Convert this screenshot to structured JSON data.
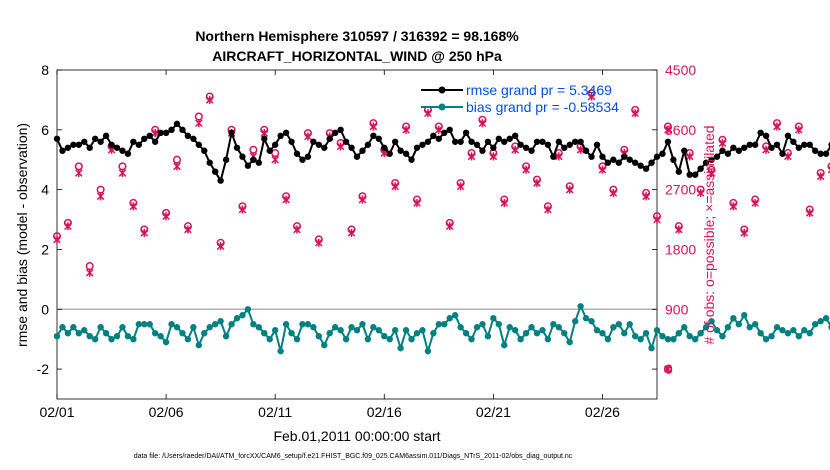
{
  "chart_data": {
    "type": "line",
    "title_line1": "Northern Hemisphere 310597 / 316392 = 98.168%",
    "title_line2": "AIRCRAFT_HORIZONTAL_WIND @ 250 hPa",
    "xlabel": "Feb.01,2011 00:00:00 start",
    "ylabel_left": "rmse and bias (model - observation)",
    "ylabel_right": "# of obs: o=possible; ×=assimilated",
    "left_ylim": [
      -3,
      8
    ],
    "right_ylim": [
      -450,
      4500
    ],
    "left_ticks": [
      "-2",
      "0",
      "2",
      "4",
      "6",
      "8"
    ],
    "left_tick_values": [
      -2,
      0,
      2,
      4,
      6,
      8
    ],
    "right_ticks": [
      "0",
      "900",
      "1800",
      "2700",
      "3600",
      "4500"
    ],
    "right_tick_values": [
      0,
      900,
      1800,
      2700,
      3600,
      4500
    ],
    "x_ticks": [
      "02/01",
      "02/06",
      "02/11",
      "02/16",
      "02/21",
      "02/26"
    ],
    "x_tick_days": [
      0,
      5,
      10,
      15,
      20,
      25
    ],
    "xlim_days": [
      0,
      27.5
    ],
    "zero_line": 0,
    "legend": [
      {
        "label": "rmse grand pr = 5.3469",
        "color": "#000000"
      },
      {
        "label": "bias grand pr = -0.58534",
        "color": "#008080"
      }
    ],
    "colors": {
      "rmse": "#000000",
      "bias": "#008080",
      "obs": "#d4145a",
      "legend_text": "#0050e0",
      "zero_line": "#b0b0b0"
    },
    "series": [
      {
        "name": "rmse",
        "axis": "left",
        "start_day": 0,
        "step_days": 0.25,
        "values": [
          5.7,
          5.3,
          5.4,
          5.5,
          5.5,
          5.6,
          5.4,
          5.7,
          5.6,
          5.8,
          5.5,
          5.4,
          5.3,
          5.2,
          5.6,
          5.5,
          5.7,
          5.8,
          5.6,
          5.9,
          5.9,
          6.0,
          6.2,
          6.0,
          5.8,
          5.7,
          5.5,
          5.3,
          4.9,
          4.6,
          4.3,
          5.0,
          5.9,
          5.4,
          5.1,
          4.8,
          5.0,
          4.9,
          5.7,
          5.3,
          5.5,
          5.8,
          5.9,
          5.6,
          5.2,
          5.0,
          5.1,
          5.6,
          5.5,
          5.4,
          5.7,
          5.9,
          6.0,
          5.6,
          5.4,
          5.1,
          5.3,
          5.5,
          5.8,
          5.7,
          5.4,
          5.2,
          5.6,
          5.3,
          5.2,
          5.0,
          5.4,
          5.5,
          5.6,
          5.8,
          5.7,
          5.9,
          6.0,
          5.6,
          5.6,
          5.9,
          5.6,
          5.5,
          5.3,
          5.6,
          5.4,
          5.7,
          5.6,
          5.7,
          5.8,
          5.5,
          5.4,
          5.3,
          5.6,
          5.6,
          5.5,
          5.1,
          5.6,
          5.4,
          5.5,
          5.6,
          5.6,
          5.3,
          5.1,
          5.5,
          5.1,
          4.9,
          5.0,
          4.9,
          5.1,
          5.0,
          4.9,
          4.8,
          4.7,
          4.9,
          5.1,
          5.2,
          5.6,
          5.0,
          4.6,
          5.3,
          4.5,
          4.5,
          4.7,
          4.9,
          5.0,
          5.1,
          5.3,
          5.2,
          5.4,
          5.3,
          5.4,
          5.5,
          5.5,
          5.9,
          5.8,
          5.4,
          5.5,
          5.2,
          5.8,
          5.6,
          5.4,
          5.5,
          5.5,
          5.3,
          5.2,
          5.2,
          5.5,
          5.3,
          5.4,
          5.5,
          5.2,
          5.0,
          5.1,
          5.0,
          5.0,
          4.8,
          4.6,
          4.6
        ]
      },
      {
        "name": "bias",
        "axis": "left",
        "start_day": 0,
        "step_days": 0.25,
        "values": [
          -0.9,
          -0.6,
          -0.8,
          -0.6,
          -0.8,
          -0.7,
          -0.9,
          -1.0,
          -0.6,
          -0.8,
          -1.0,
          -0.9,
          -0.6,
          -0.9,
          -1.0,
          -0.5,
          -0.5,
          -0.5,
          -0.8,
          -0.9,
          -1.1,
          -0.5,
          -0.6,
          -0.8,
          -1.0,
          -0.6,
          -1.2,
          -0.8,
          -0.6,
          -0.5,
          -0.4,
          -0.9,
          -0.5,
          -0.3,
          -0.2,
          0.0,
          -0.5,
          -0.6,
          -0.8,
          -1.0,
          -0.7,
          -1.4,
          -0.5,
          -0.8,
          -1.0,
          -0.5,
          -0.5,
          -0.6,
          -0.9,
          -1.2,
          -0.8,
          -0.6,
          -0.7,
          -1.0,
          -0.6,
          -0.7,
          -0.5,
          -1.0,
          -0.6,
          -0.7,
          -0.9,
          -1.0,
          -0.7,
          -1.3,
          -0.7,
          -1.0,
          -0.8,
          -0.7,
          -1.4,
          -0.8,
          -0.5,
          -0.5,
          -0.3,
          -0.2,
          -0.6,
          -0.8,
          -1.0,
          -0.6,
          -0.5,
          -0.9,
          -0.3,
          -0.5,
          -1.2,
          -0.6,
          -0.7,
          -1.0,
          -0.8,
          -0.6,
          -0.8,
          -0.7,
          -1.0,
          -0.5,
          -0.6,
          -0.8,
          -1.1,
          -0.4,
          0.1,
          -0.3,
          -0.4,
          -0.7,
          -0.8,
          -1.0,
          -0.6,
          -0.5,
          -0.8,
          -0.5,
          -0.9,
          -1.0,
          -0.8,
          -1.3,
          -0.7,
          -0.9,
          -1.0,
          -1.0,
          -0.8,
          -0.6,
          -0.9,
          -1.0,
          -0.8,
          -0.6,
          -0.4,
          -0.7,
          -0.9,
          -0.6,
          -0.3,
          -0.5,
          -0.2,
          -0.6,
          -0.5,
          -0.8,
          -1.0,
          -0.9,
          -0.6,
          -0.7,
          -0.8,
          -0.7,
          -0.9,
          -0.7,
          -0.8,
          -0.5,
          -0.4,
          -0.3,
          -0.6,
          -0.9,
          -1.0,
          -0.6,
          -1.2,
          -0.6,
          -0.8,
          -1.1,
          -0.6,
          -0.7,
          -0.4,
          -0.5,
          -0.9,
          -0.8,
          -0.8,
          -0.8,
          -0.7,
          -0.5,
          -0.4,
          -0.4
        ]
      },
      {
        "name": "obs possible",
        "axis": "right",
        "marker": "o",
        "start_day": 0,
        "step_days": 0.5,
        "values": [
          2000,
          2200,
          3050,
          1550,
          2700,
          3350,
          3050,
          2500,
          2100,
          3600,
          2350,
          3150,
          2150,
          3800,
          4100,
          1900,
          3600,
          2450,
          3300,
          3600,
          3250,
          2600,
          2150,
          3550,
          1950,
          3550,
          3400,
          2100,
          2600,
          3700,
          3300,
          2800,
          3650,
          2550,
          3900,
          3650,
          2200,
          2800,
          3250,
          3750,
          3250,
          2550,
          3350,
          3050,
          2850,
          2450,
          3250,
          2750,
          3350,
          4150,
          3050,
          2700,
          3300,
          3900,
          2650,
          2300,
          3650,
          2150,
          3250,
          2700,
          3000,
          3450,
          2500,
          2100,
          2550,
          3350,
          3700,
          3250,
          3650,
          2400,
          2950,
          3050,
          2650,
          3800,
          4350,
          3950,
          3350,
          3700,
          4150,
          3650,
          3050,
          2350,
          2750,
          3300
        ]
      },
      {
        "name": "obs assimilated",
        "axis": "right",
        "marker": "x",
        "start_day": 0,
        "step_days": 0.5,
        "values": [
          1950,
          2150,
          2950,
          1450,
          2600,
          3300,
          2950,
          2450,
          2050,
          3550,
          2300,
          3050,
          2100,
          3700,
          4050,
          1850,
          3550,
          2400,
          3200,
          3550,
          3150,
          2550,
          2100,
          3500,
          1900,
          3500,
          3350,
          2050,
          2550,
          3650,
          3250,
          2750,
          3600,
          2500,
          3850,
          3600,
          2150,
          2750,
          3200,
          3700,
          3200,
          2500,
          3300,
          3000,
          2800,
          2400,
          3200,
          2700,
          3300,
          4100,
          3000,
          2650,
          3250,
          3850,
          2600,
          2250,
          3600,
          2100,
          3200,
          2650,
          2950,
          3400,
          2450,
          2050,
          2500,
          3300,
          3650,
          3200,
          3600,
          2350,
          2900,
          3000,
          2600,
          3750,
          4300,
          3900,
          3300,
          3650,
          4100,
          3600,
          3000,
          2300,
          2700,
          3250
        ]
      },
      {
        "name": "obs outlier",
        "axis": "right",
        "marker": "ox",
        "points": [
          {
            "x": 28.0,
            "y": 0
          }
        ]
      }
    ]
  },
  "footnote": "data file: /Users/raeder/DAI/ATM_forcXX/CAM6_setup/f.e21.FHIST_BGC.f09_025.CAM6assim.011/Diags_NTrS_2011-02/obs_diag_output.nc"
}
